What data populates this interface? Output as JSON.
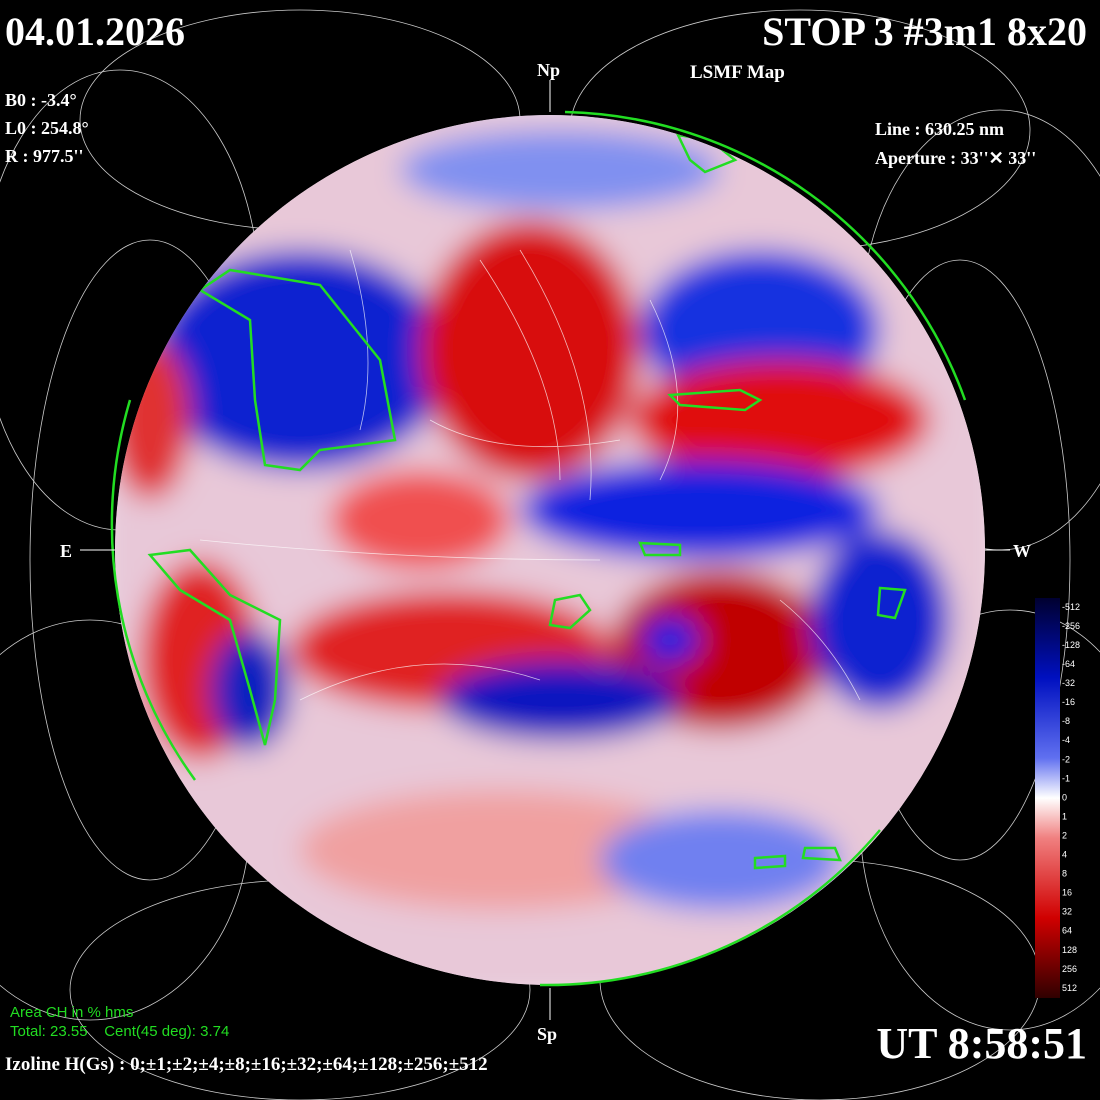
{
  "header": {
    "date": "04.01.2026",
    "station": "STOP 3 #3m1 8x20",
    "map_type": "LSMF  Map"
  },
  "parameters": {
    "b0": "B0 : -3.4°",
    "l0": "L0 : 254.8°",
    "r": "R  : 977.5''",
    "line": "Line :  630.25 nm",
    "aperture": "Aperture : 33''✕ 33''"
  },
  "directions": {
    "north": "Np",
    "south": "Sp",
    "east": "E",
    "west": "W"
  },
  "coronal_holes": {
    "title": "Area CH in % hms",
    "summary": "Total: 23.55    Cent(45 deg): 3.74"
  },
  "isolines": "Izoline H(Gs) : 0;±1;±2;±4;±8;±16;±32;±64;±128;±256;±512",
  "time": "UT 8:58:51",
  "colorbar": {
    "labels": [
      "-512",
      "-256",
      "-128",
      "-64",
      "-32",
      "-16",
      "-8",
      "-4",
      "-2",
      "-1",
      "0",
      "1",
      "2",
      "4",
      "8",
      "16",
      "32",
      "64",
      "128",
      "256",
      "512"
    ]
  }
}
